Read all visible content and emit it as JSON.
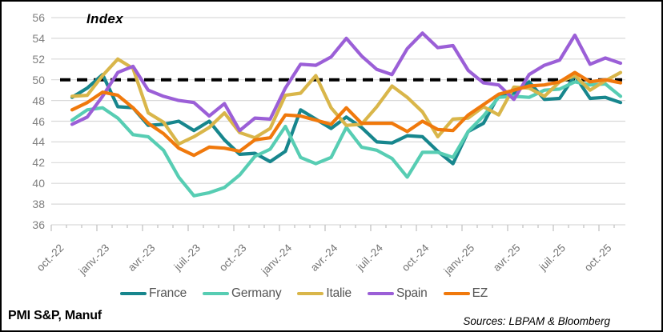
{
  "header": {
    "title": "Index"
  },
  "footer": {
    "left": "PMI S&P, Manuf",
    "sources": "Sources: LBPAM & Bloomberg"
  },
  "chart_data": {
    "type": "line",
    "title": "Index",
    "xlabel": "",
    "ylabel": "",
    "ylim": [
      36,
      56
    ],
    "y_tick_step": 2,
    "grid": true,
    "legend_position": "bottom",
    "n_points": 37,
    "months_per_tick": 3,
    "x_tick_labels": [
      "oct.-22",
      "janv.-23",
      "avr.-23",
      "juil.-23",
      "oct.-23",
      "janv.-24",
      "avr.-24",
      "juil.-24",
      "oct.-24",
      "janv.-25",
      "avr.-25",
      "juil.-25",
      "oct.-25"
    ],
    "ref_line": {
      "value": 50,
      "style": "dashed",
      "color": "#000000"
    },
    "colors": {
      "gridline": "#D9D9D9",
      "axis": "#BFBFBF",
      "tick_label": "#737373"
    },
    "series": [
      {
        "name": "France",
        "color": "#17868D",
        "values": [
          48.3,
          49.2,
          50.5,
          47.4,
          47.3,
          45.6,
          45.7,
          46.0,
          45.1,
          46.0,
          44.2,
          42.8,
          42.9,
          42.1,
          43.1,
          47.1,
          46.2,
          45.3,
          46.4,
          45.4,
          44.0,
          43.9,
          44.6,
          44.5,
          43.1,
          41.9,
          45.0,
          45.8,
          48.5,
          48.7,
          49.8,
          48.1,
          48.2,
          50.4,
          48.2,
          48.3,
          47.8
        ]
      },
      {
        "name": "Germany",
        "color": "#57CDB3",
        "values": [
          46.1,
          47.1,
          47.3,
          46.3,
          44.7,
          44.5,
          43.2,
          40.6,
          38.8,
          39.1,
          39.6,
          40.8,
          42.6,
          43.3,
          45.5,
          42.5,
          41.9,
          42.5,
          45.4,
          43.5,
          43.2,
          42.4,
          40.6,
          43.0,
          43.0,
          42.5,
          45.0,
          46.5,
          48.3,
          48.4,
          48.3,
          49.0,
          49.1,
          49.8,
          49.5,
          49.6,
          48.4
        ]
      },
      {
        "name": "Italie",
        "color": "#D9B64A",
        "values": [
          48.4,
          48.5,
          50.4,
          52.0,
          51.1,
          46.8,
          45.9,
          43.8,
          44.5,
          45.4,
          46.8,
          44.9,
          44.4,
          45.3,
          48.5,
          48.7,
          50.4,
          47.3,
          45.6,
          45.7,
          47.4,
          49.4,
          48.3,
          46.9,
          44.5,
          46.2,
          46.3,
          47.4,
          46.6,
          49.3,
          49.2,
          48.4,
          49.8,
          50.4,
          49.0,
          49.9,
          50.7
        ]
      },
      {
        "name": "Spain",
        "color": "#9B5FD7",
        "values": [
          45.7,
          46.4,
          48.4,
          50.7,
          51.3,
          49.0,
          48.4,
          48.0,
          47.8,
          46.5,
          47.7,
          45.1,
          46.3,
          46.2,
          49.2,
          51.5,
          51.4,
          52.2,
          54.0,
          52.3,
          51.0,
          50.5,
          53.0,
          54.5,
          53.1,
          53.3,
          50.9,
          49.7,
          49.5,
          48.1,
          50.5,
          51.4,
          51.9,
          54.3,
          51.5,
          52.1,
          51.6
        ]
      },
      {
        "name": "EZ",
        "color": "#F0790C",
        "values": [
          47.1,
          47.8,
          48.8,
          48.5,
          47.3,
          45.8,
          44.8,
          43.4,
          42.7,
          43.5,
          43.4,
          43.1,
          44.2,
          44.4,
          46.6,
          46.5,
          46.1,
          45.7,
          47.3,
          45.8,
          45.8,
          45.8,
          45.0,
          46.0,
          45.2,
          45.1,
          46.6,
          47.6,
          48.6,
          49.0,
          49.4,
          49.5,
          49.8,
          50.7,
          49.8,
          50.0,
          49.7
        ]
      }
    ]
  }
}
